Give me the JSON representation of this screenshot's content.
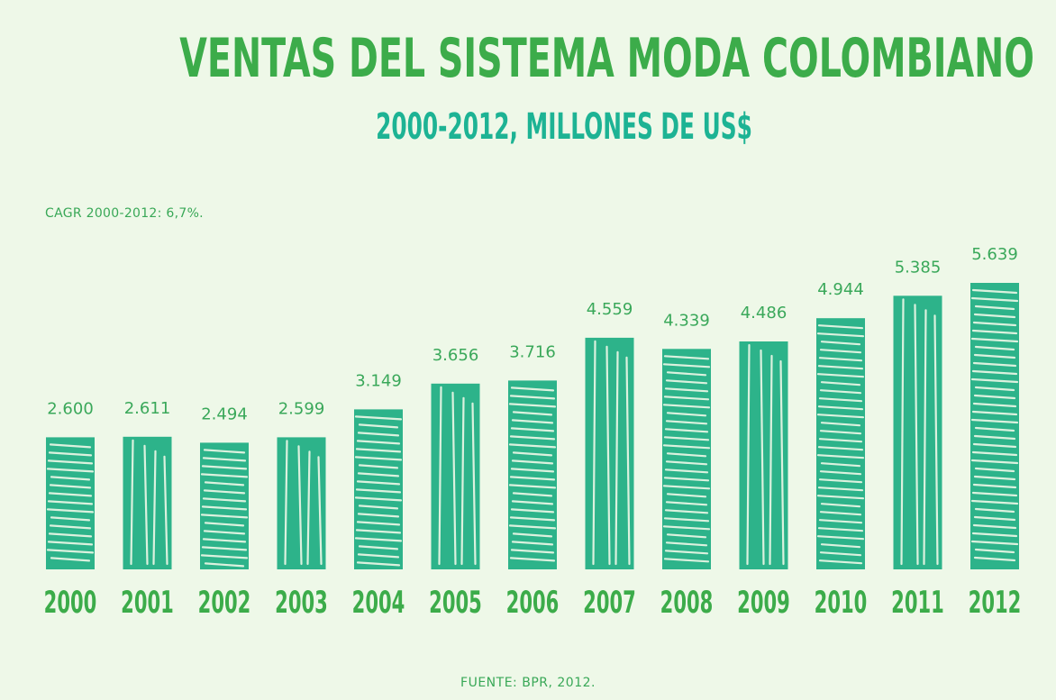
{
  "title": "VENTAS DEL SISTEMA MODA COLOMBIANO",
  "subtitle": "2000-2012, MILLONES DE US$",
  "note": "CAGR 2000-2012: 6,7%.",
  "source": "FUENTE: BPR, 2012.",
  "colors": {
    "background": "#eef8e8",
    "title": "#3cac4a",
    "subtitle": "#1db394",
    "bar": "#2db38a",
    "labels": "#3aa85a"
  },
  "chart_data": {
    "type": "bar",
    "categories": [
      "2000",
      "2001",
      "2002",
      "2003",
      "2004",
      "2005",
      "2006",
      "2007",
      "2008",
      "2009",
      "2010",
      "2011",
      "2012"
    ],
    "values": [
      2600,
      2611,
      2494,
      2599,
      3149,
      3656,
      3716,
      4559,
      4339,
      4486,
      4944,
      5385,
      5639
    ],
    "value_labels": [
      "2.600",
      "2.611",
      "2.494",
      "2.599",
      "3.149",
      "3.656",
      "3.716",
      "4.559",
      "4.339",
      "4.486",
      "4.944",
      "5.385",
      "5.639"
    ],
    "title": "VENTAS DEL SISTEMA MODA COLOMBIANO",
    "subtitle": "2000-2012, MILLONES DE US$",
    "xlabel": "",
    "ylabel": "",
    "grid": false,
    "legend": "none"
  }
}
